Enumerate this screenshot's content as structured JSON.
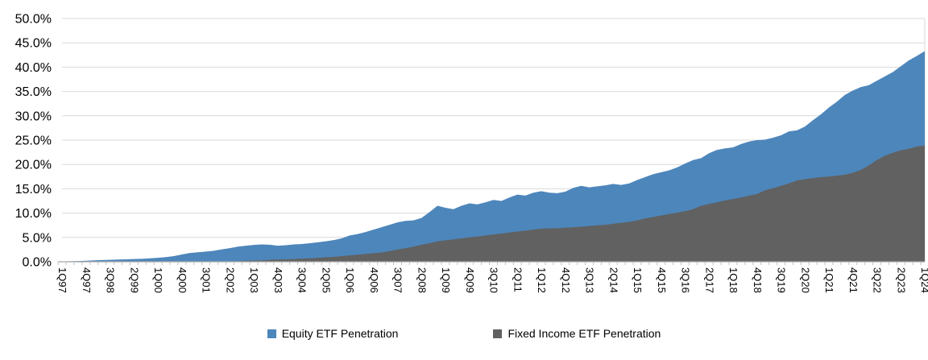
{
  "chart_data": {
    "type": "area",
    "title": "",
    "x_start": "1Q97",
    "x_end": "1Q24",
    "x_tick_labels": [
      "1Q97",
      "4Q97",
      "3Q98",
      "2Q99",
      "1Q00",
      "4Q00",
      "3Q01",
      "2Q02",
      "1Q03",
      "4Q03",
      "3Q04",
      "2Q05",
      "1Q06",
      "4Q06",
      "3Q07",
      "2Q08",
      "1Q09",
      "4Q09",
      "3Q10",
      "2Q11",
      "1Q12",
      "4Q12",
      "3Q13",
      "2Q14",
      "1Q15",
      "4Q15",
      "3Q16",
      "2Q17",
      "1Q18",
      "4Q18",
      "3Q19",
      "2Q20",
      "1Q21",
      "4Q21",
      "3Q22",
      "2Q23",
      "1Q24"
    ],
    "x_label_every": 3,
    "y_tick_labels": [
      "0.0%",
      "5.0%",
      "10.0%",
      "15.0%",
      "20.0%",
      "25.0%",
      "30.0%",
      "35.0%",
      "40.0%",
      "45.0%",
      "50.0%"
    ],
    "ylim": [
      0,
      50
    ],
    "ytick_step": 5,
    "grid": true,
    "legend_position": "bottom-center",
    "series": [
      {
        "name": "Equity ETF Penetration",
        "color": "#4D86BB",
        "values": [
          0.05,
          0.1,
          0.15,
          0.2,
          0.3,
          0.35,
          0.4,
          0.45,
          0.5,
          0.55,
          0.6,
          0.7,
          0.8,
          0.95,
          1.15,
          1.5,
          1.8,
          1.95,
          2.1,
          2.25,
          2.55,
          2.8,
          3.1,
          3.3,
          3.45,
          3.55,
          3.5,
          3.3,
          3.4,
          3.55,
          3.65,
          3.8,
          4.0,
          4.2,
          4.45,
          4.8,
          5.4,
          5.7,
          6.1,
          6.6,
          7.1,
          7.6,
          8.1,
          8.4,
          8.5,
          9.0,
          10.2,
          11.5,
          11.1,
          10.8,
          11.5,
          12.0,
          11.8,
          12.2,
          12.7,
          12.5,
          13.2,
          13.8,
          13.6,
          14.2,
          14.5,
          14.2,
          14.1,
          14.4,
          15.2,
          15.6,
          15.3,
          15.5,
          15.7,
          16.0,
          15.8,
          16.1,
          16.8,
          17.4,
          18.0,
          18.4,
          18.8,
          19.4,
          20.2,
          20.9,
          21.3,
          22.3,
          23.0,
          23.3,
          23.5,
          24.2,
          24.7,
          25.0,
          25.1,
          25.5,
          26.0,
          26.8,
          27.0,
          27.8,
          29.1,
          30.3,
          31.7,
          32.9,
          34.3,
          35.2,
          35.9,
          36.3,
          37.2,
          38.1,
          39.0,
          40.2,
          41.4,
          42.3,
          43.3
        ]
      },
      {
        "name": "Fixed Income ETF Penetration",
        "color": "#616161",
        "values": [
          0,
          0,
          0,
          0,
          0,
          0,
          0,
          0,
          0,
          0,
          0,
          0,
          0,
          0,
          0,
          0,
          0,
          0,
          0,
          0,
          0.02,
          0.05,
          0.1,
          0.2,
          0.25,
          0.3,
          0.4,
          0.45,
          0.5,
          0.55,
          0.65,
          0.7,
          0.8,
          0.9,
          1.0,
          1.15,
          1.3,
          1.45,
          1.6,
          1.75,
          1.9,
          2.2,
          2.5,
          2.8,
          3.1,
          3.5,
          3.8,
          4.2,
          4.4,
          4.6,
          4.8,
          5.0,
          5.2,
          5.4,
          5.6,
          5.8,
          6.0,
          6.2,
          6.4,
          6.6,
          6.8,
          6.85,
          6.9,
          7.0,
          7.1,
          7.2,
          7.35,
          7.5,
          7.6,
          7.8,
          8.0,
          8.2,
          8.5,
          8.9,
          9.2,
          9.5,
          9.8,
          10.1,
          10.4,
          10.8,
          11.5,
          11.9,
          12.2,
          12.6,
          12.9,
          13.2,
          13.6,
          13.9,
          14.7,
          15.1,
          15.6,
          16.1,
          16.7,
          17.0,
          17.2,
          17.4,
          17.5,
          17.7,
          17.9,
          18.3,
          18.9,
          19.8,
          20.9,
          21.8,
          22.4,
          22.9,
          23.2,
          23.7,
          23.9
        ]
      }
    ],
    "colors": {
      "gridline": "#D9D9D9",
      "axis_line": "#A6A6A6",
      "tick_mark": "#BFBFBF",
      "axis_text": "#000000",
      "background": "#FFFFFF"
    }
  }
}
